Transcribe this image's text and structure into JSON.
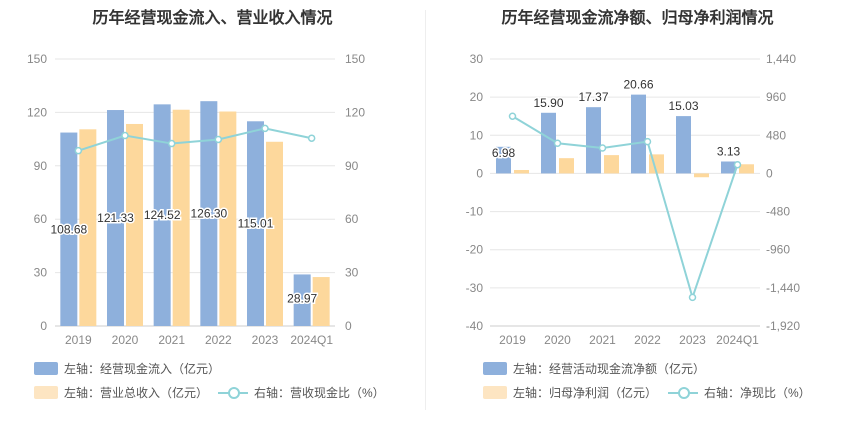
{
  "charts": [
    {
      "title": "历年经营现金流入、营业收入情况",
      "legend": {
        "bar1": "左轴：经营现金流入（亿元）",
        "bar2": "左轴：营业总收入（亿元）",
        "line": "右轴：营收现金比（%）"
      }
    },
    {
      "title": "历年经营现金流净额、归母净利润情况",
      "legend": {
        "bar1": "左轴：经营活动现金流净额（亿元）",
        "bar2": "左轴：归母净利润（亿元）",
        "line": "右轴：净现比（%）"
      }
    }
  ],
  "chart_data": [
    {
      "type": "bar",
      "title": "历年经营现金流入、营业收入情况",
      "categories": [
        "2019",
        "2020",
        "2021",
        "2022",
        "2023",
        "2024Q1"
      ],
      "left_axis": {
        "min": 0,
        "max": 150,
        "ticks": [
          0,
          30,
          60,
          90,
          120,
          150
        ],
        "tick_labels": [
          "0",
          "30",
          "60",
          "90",
          "120",
          "150"
        ]
      },
      "right_axis": {
        "min": 0,
        "max": 150,
        "ticks": [
          0,
          30,
          60,
          90,
          120,
          150
        ],
        "tick_labels": [
          "0",
          "30",
          "60",
          "90",
          "120",
          "150"
        ]
      },
      "series": [
        {
          "name": "左轴：经营现金流入（亿元）",
          "type": "bar",
          "axis": "left",
          "color": "#8eb0dc",
          "values": [
            108.68,
            121.33,
            124.52,
            126.3,
            115.01,
            28.97
          ],
          "labels": [
            "108.68",
            "121.33",
            "124.52",
            "126.30",
            "115.01",
            "28.97"
          ]
        },
        {
          "name": "左轴：营业总收入（亿元）",
          "type": "bar",
          "axis": "left",
          "color": "#fdd89c",
          "values": [
            110.5,
            113.5,
            121.5,
            120.5,
            103.5,
            27.5
          ]
        },
        {
          "name": "右轴：营收现金比（%）",
          "type": "line",
          "axis": "right",
          "color": "#8fd3d8",
          "values": [
            98.5,
            107,
            102.5,
            104.8,
            111,
            105.5
          ]
        }
      ],
      "grid": true,
      "legend_position": "bottom-left"
    },
    {
      "type": "bar",
      "title": "历年经营现金流净额、归母净利润情况",
      "categories": [
        "2019",
        "2020",
        "2021",
        "2022",
        "2023",
        "2024Q1"
      ],
      "left_axis": {
        "min": -40,
        "max": 30,
        "ticks": [
          -40,
          -30,
          -20,
          -10,
          0,
          10,
          20,
          30
        ],
        "tick_labels": [
          "-40",
          "-30",
          "-20",
          "-10",
          "0",
          "10",
          "20",
          "30"
        ]
      },
      "right_axis": {
        "min": -1920,
        "max": 1440,
        "ticks": [
          -1920,
          -1440,
          -960,
          -480,
          0,
          480,
          960,
          1440
        ],
        "tick_labels": [
          "-1,920",
          "-1,440",
          "-960",
          "-480",
          "0",
          "480",
          "960",
          "1,440"
        ]
      },
      "series": [
        {
          "name": "左轴：经营活动现金流净额（亿元）",
          "type": "bar",
          "axis": "left",
          "color": "#8eb0dc",
          "values": [
            6.98,
            15.9,
            17.37,
            20.66,
            15.03,
            3.13
          ],
          "labels": [
            "6.98",
            "15.90",
            "17.37",
            "20.66",
            "15.03",
            "3.13"
          ]
        },
        {
          "name": "左轴：归母净利润（亿元）",
          "type": "bar",
          "axis": "left",
          "color": "#fdd89c",
          "values": [
            0.9,
            4.0,
            4.8,
            5.0,
            -1.0,
            2.4
          ]
        },
        {
          "name": "右轴：净现比（%）",
          "type": "line",
          "axis": "right",
          "color": "#8fd3d8",
          "values": [
            720,
            380,
            320,
            400,
            -1560,
            110
          ]
        }
      ],
      "grid": true,
      "legend_position": "bottom-left"
    }
  ]
}
